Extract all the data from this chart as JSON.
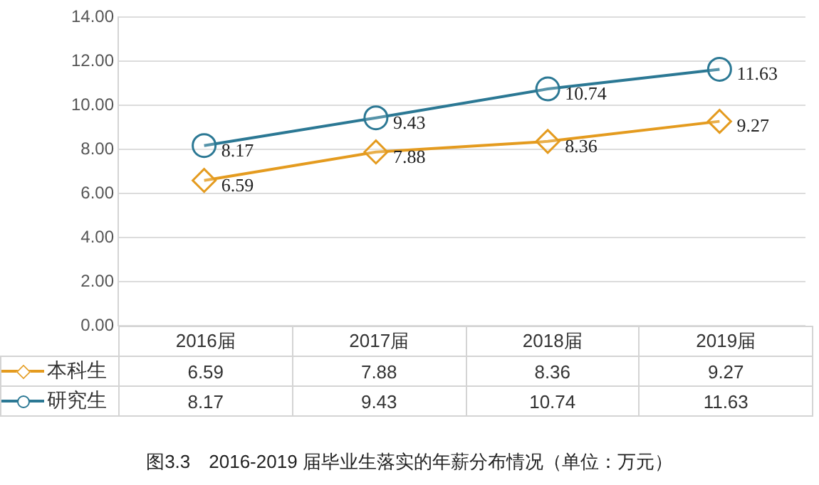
{
  "chart_data": {
    "type": "line",
    "title": "图3.3　2016-2019 届毕业生落实的年薪分布情况（单位：万元）",
    "categories": [
      "2016届",
      "2017届",
      "2018届",
      "2019届"
    ],
    "series": [
      {
        "name": "本科生",
        "color": "#e49b1f",
        "marker": "diamond",
        "values": [
          6.59,
          7.88,
          8.36,
          9.27
        ]
      },
      {
        "name": "研究生",
        "color": "#2b7894",
        "marker": "circle",
        "values": [
          8.17,
          9.43,
          10.74,
          11.63
        ]
      }
    ],
    "ylim": [
      0,
      14
    ],
    "yticks": [
      {
        "value": 0,
        "label": "0.00"
      },
      {
        "value": 2,
        "label": "2.00"
      },
      {
        "value": 4,
        "label": "4.00"
      },
      {
        "value": 6,
        "label": "6.00"
      },
      {
        "value": 8,
        "label": "8.00"
      },
      {
        "value": 10,
        "label": "10.00"
      },
      {
        "value": 12,
        "label": "12.00"
      },
      {
        "value": 14,
        "label": "14.00"
      }
    ],
    "annotations": [
      {
        "text": "6.59",
        "x": "2016届",
        "y": 6.59
      },
      {
        "text": "7.88",
        "x": "2017届",
        "y": 7.88
      },
      {
        "text": "8.36",
        "x": "2018届",
        "y": 8.36
      },
      {
        "text": "9.27",
        "x": "2019届",
        "y": 9.27
      },
      {
        "text": "8.17",
        "x": "2016届",
        "y": 8.17
      },
      {
        "text": "9.43",
        "x": "2017届",
        "y": 9.43
      },
      {
        "text": "10.74",
        "x": "2018届",
        "y": 10.74
      },
      {
        "text": "11.63",
        "x": "2019届",
        "y": 11.63
      }
    ],
    "grid": "y",
    "legend": "bottom",
    "data_labels": true,
    "line_style": "solid"
  }
}
